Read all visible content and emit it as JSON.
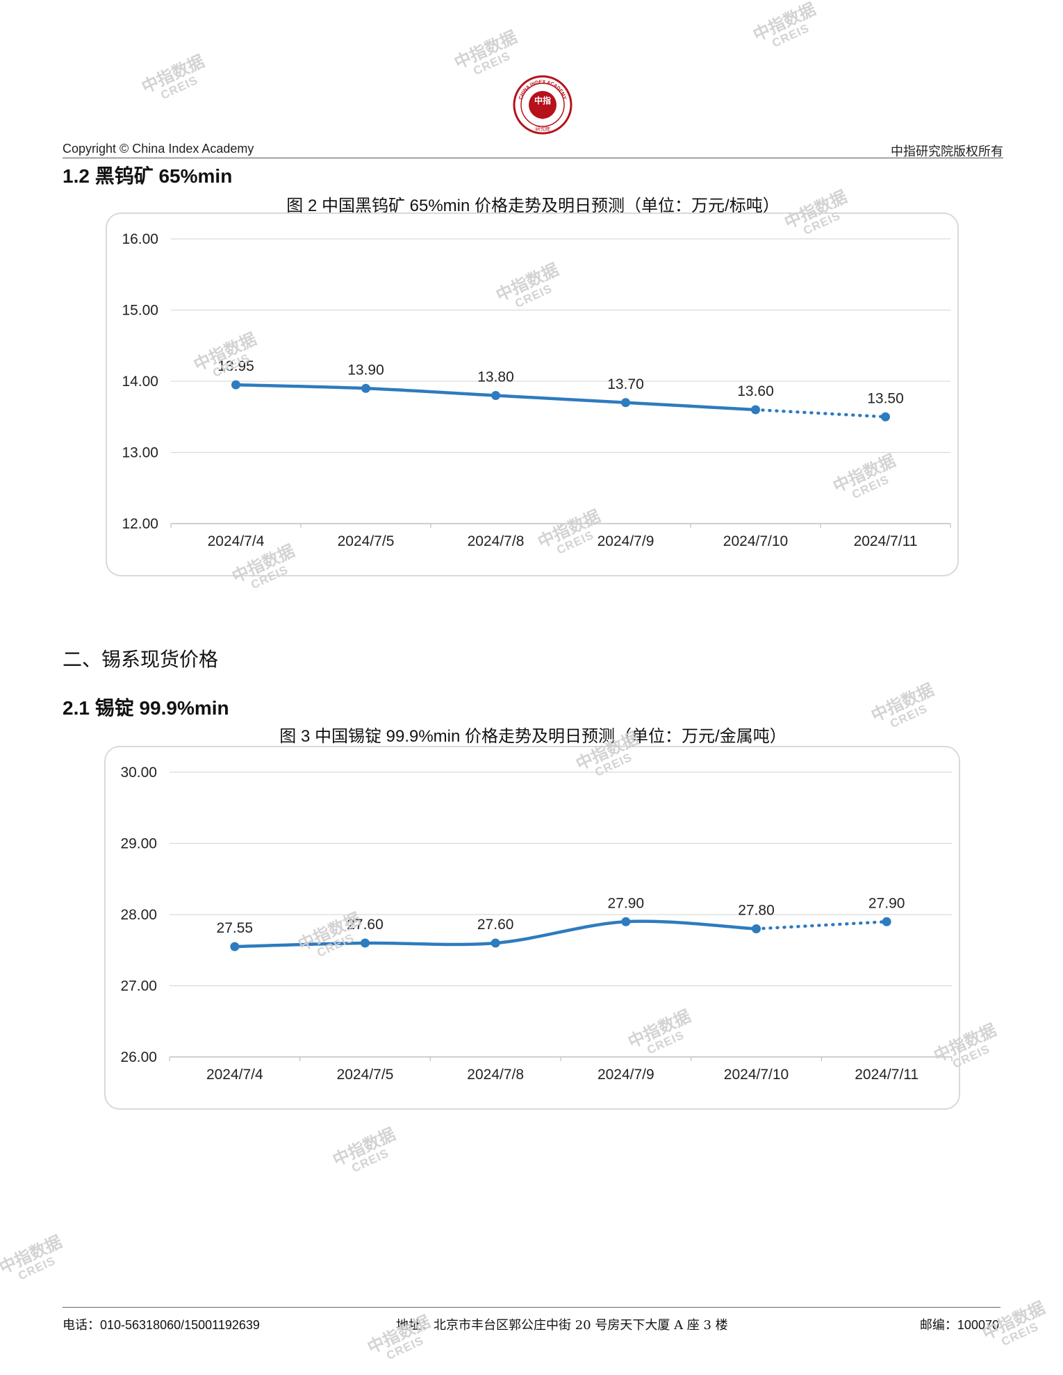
{
  "header": {
    "logo_text": "CHINA INDEX ACADEMY",
    "logo_center": "中指",
    "logo_bottom": "研究院",
    "copyright": "Copyright © China Index Academy",
    "rights": "中指研究院版权所有"
  },
  "section_1_2": {
    "heading": "1.2 黑钨矿 65%min"
  },
  "chart1_title": "图 2 中国黑钨矿 65%min 价格走势及明日预测（单位：万元/标吨）",
  "section_2": {
    "heading": "二、锡系现货价格"
  },
  "section_2_1": {
    "heading": "2.1 锡锭 99.9%min"
  },
  "chart2_title": "图 3 中国锡锭 99.9%min 价格走势及明日预测（单位：万元/金属吨）",
  "chart_data": [
    {
      "type": "line",
      "categories": [
        "2024/7/4",
        "2024/7/5",
        "2024/7/8",
        "2024/7/9",
        "2024/7/10",
        "2024/7/11"
      ],
      "values": [
        13.95,
        13.9,
        13.8,
        13.7,
        13.6,
        13.5
      ],
      "labels": [
        "13.95",
        "13.90",
        "13.80",
        "13.70",
        "13.60",
        "13.50"
      ],
      "forecast_last": true,
      "ylim": [
        12,
        16
      ],
      "yticks": [
        "12.00",
        "13.00",
        "14.00",
        "15.00",
        "16.00"
      ],
      "grid": true,
      "color": "#2e7bbf"
    },
    {
      "type": "line",
      "categories": [
        "2024/7/4",
        "2024/7/5",
        "2024/7/8",
        "2024/7/9",
        "2024/7/10",
        "2024/7/11"
      ],
      "values": [
        27.55,
        27.6,
        27.6,
        27.9,
        27.8,
        27.9
      ],
      "labels": [
        "27.55",
        "27.60",
        "27.60",
        "27.90",
        "27.80",
        "27.90"
      ],
      "forecast_last": true,
      "ylim": [
        26,
        30
      ],
      "yticks": [
        "26.00",
        "27.00",
        "28.00",
        "29.00",
        "30.00"
      ],
      "grid": true,
      "color": "#2e7bbf"
    }
  ],
  "footer": {
    "phone": "电话：010-56318060/15001192639",
    "address": "地址：北京市丰台区郭公庄中街 20 号房天下大厦 A 座 3 楼",
    "postcode": "邮编：100070"
  },
  "watermark": {
    "cn": "中指数据",
    "en": "CREIS"
  }
}
